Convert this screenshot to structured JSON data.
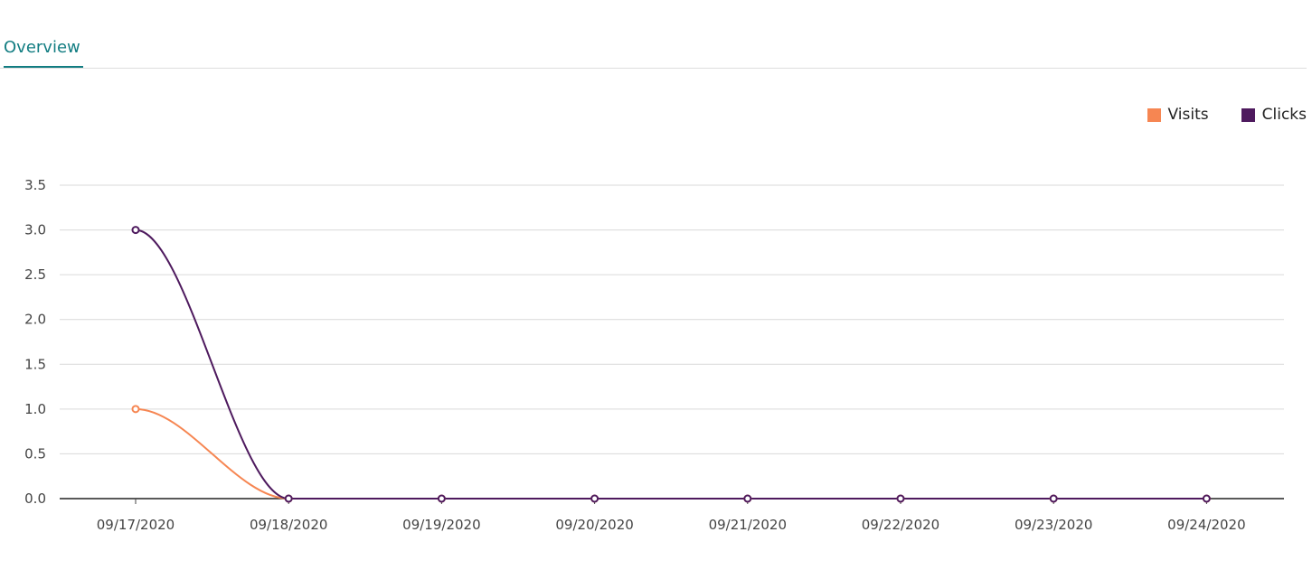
{
  "tabs": [
    {
      "label": "Overview",
      "active": true
    }
  ],
  "colors": {
    "accent": "#127d82",
    "visits": "#f68652",
    "clicks": "#4e1a5e"
  },
  "chart_data": {
    "type": "line",
    "x": [
      "09/17/2020",
      "09/18/2020",
      "09/19/2020",
      "09/20/2020",
      "09/21/2020",
      "09/22/2020",
      "09/23/2020",
      "09/24/2020"
    ],
    "series": [
      {
        "name": "Visits",
        "values": [
          1,
          0,
          0,
          0,
          0,
          0,
          0,
          0
        ]
      },
      {
        "name": "Clicks",
        "values": [
          3,
          0,
          0,
          0,
          0,
          0,
          0,
          0
        ]
      }
    ],
    "ylim": [
      0,
      3.5
    ],
    "yticks": [
      "0.0",
      "0.5",
      "1.0",
      "1.5",
      "2.0",
      "2.5",
      "3.0",
      "3.5"
    ],
    "grid": true,
    "legend": "top-right",
    "smooth": true
  }
}
